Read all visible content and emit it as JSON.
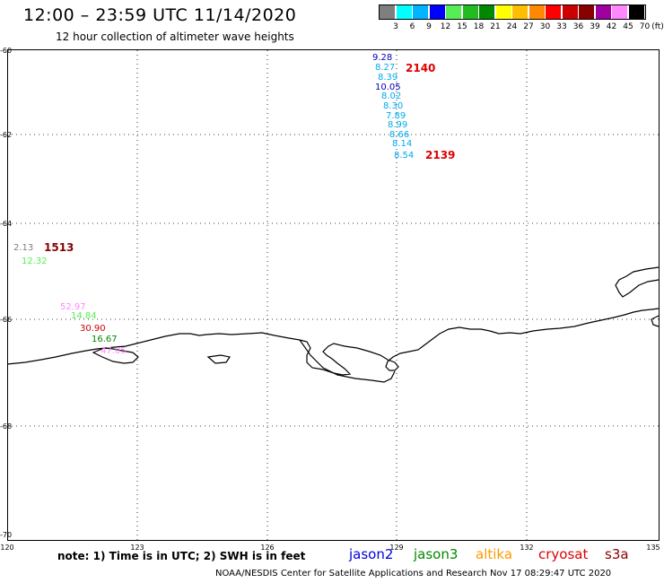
{
  "header": {
    "title": "12:00 – 23:59 UTC 11/14/2020",
    "subtitle": "12 hour collection of altimeter wave heights"
  },
  "colorbar": {
    "labels": [
      "3",
      "6",
      "9",
      "12",
      "15",
      "18",
      "21",
      "24",
      "27",
      "30",
      "33",
      "36",
      "39",
      "42",
      "45",
      "70"
    ],
    "unit": "(ft)",
    "colors": [
      "#7f7f7f",
      "#00ffff",
      "#00b4ff",
      "#0000ff",
      "#55ee55",
      "#22bb22",
      "#008800",
      "#ffff00",
      "#ffbf00",
      "#ff8800",
      "#ff0000",
      "#cc0000",
      "#880000",
      "#a000a0",
      "#ff88ff",
      "#000000"
    ]
  },
  "axes": {
    "lat_labels": [
      "-60",
      "-62",
      "-64",
      "-66",
      "-68",
      "-70"
    ],
    "lon_labels": [
      "120",
      "123",
      "126",
      "129",
      "132",
      "135"
    ]
  },
  "passes": [
    {
      "id": "2140",
      "color": "#dd0000"
    },
    {
      "id": "2139",
      "color": "#dd0000"
    },
    {
      "id": "1513",
      "color": "#880000"
    }
  ],
  "measurements": [
    {
      "value": "9.28",
      "color": "#0000bb"
    },
    {
      "value": "8.27",
      "color": "#00aaee"
    },
    {
      "value": "8.39",
      "color": "#00aaee"
    },
    {
      "value": "10.05",
      "color": "#0000bb"
    },
    {
      "value": "8.02",
      "color": "#00aaee"
    },
    {
      "value": "8.30",
      "color": "#00aaee"
    },
    {
      "value": "7.89",
      "color": "#00aaee"
    },
    {
      "value": "8.99",
      "color": "#00aaee"
    },
    {
      "value": "8.66",
      "color": "#00aaee"
    },
    {
      "value": "8.14",
      "color": "#00aaee"
    },
    {
      "value": "8.54",
      "color": "#00aaee"
    },
    {
      "value": "2.13",
      "color": "#7f7f7f"
    },
    {
      "value": "12.32",
      "color": "#55ee55"
    },
    {
      "value": "52.97",
      "color": "#ff88ff"
    },
    {
      "value": "14.84",
      "color": "#55ee55"
    },
    {
      "value": "30.90",
      "color": "#cc0000"
    },
    {
      "value": "16.67",
      "color": "#008800"
    },
    {
      "value": "47.05",
      "color": "#ff88ff"
    }
  ],
  "footer": {
    "note": "note: 1) Time is in UTC; 2) SWH is in feet",
    "satellites": [
      {
        "name": "jason2",
        "color": "#0000dd"
      },
      {
        "name": "jason3",
        "color": "#008800"
      },
      {
        "name": "altika",
        "color": "#ff9900"
      },
      {
        "name": "cryosat",
        "color": "#dd0000"
      },
      {
        "name": "s3a",
        "color": "#880000"
      }
    ],
    "credit": "NOAA/NESDIS Center for Satellite Applications and Research    Nov 17 08:29:47 UTC 2020"
  }
}
